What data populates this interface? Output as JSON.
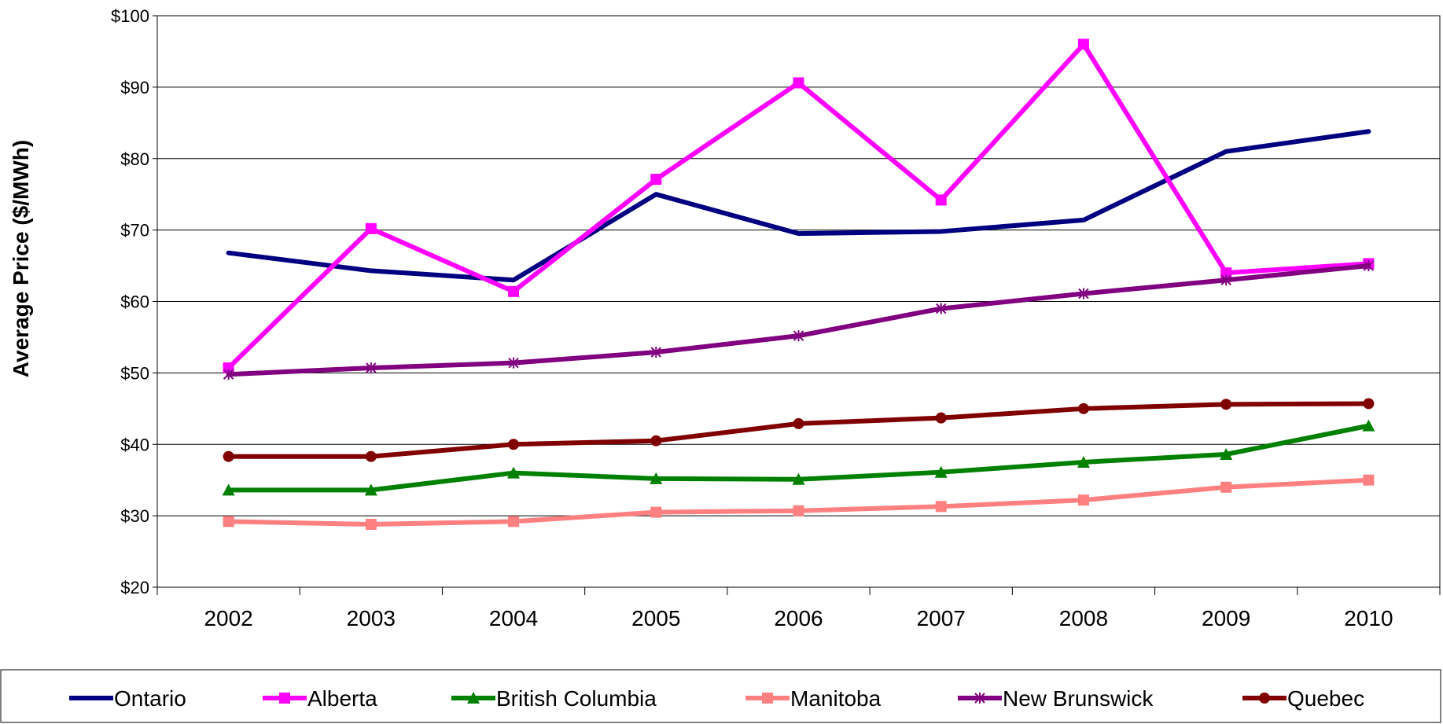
{
  "chart_data": {
    "type": "line",
    "title": "",
    "xlabel": "",
    "ylabel": "Average Price ($/MWh)",
    "x": [
      "2002",
      "2003",
      "2004",
      "2005",
      "2006",
      "2007",
      "2008",
      "2009",
      "2010"
    ],
    "ylim": [
      20,
      100
    ],
    "yticks": [
      20,
      30,
      40,
      50,
      60,
      70,
      80,
      90,
      100
    ],
    "ytick_labels": [
      "$20",
      "$30",
      "$40",
      "$50",
      "$60",
      "$70",
      "$80",
      "$90",
      "$100"
    ],
    "grid": true,
    "legend_position": "bottom",
    "series": [
      {
        "name": "Ontario",
        "color": "#000080",
        "marker": "none",
        "values": [
          66.8,
          64.3,
          63.0,
          75.0,
          69.5,
          69.8,
          71.4,
          81.0,
          83.8
        ]
      },
      {
        "name": "Alberta",
        "color": "#FF00FF",
        "marker": "square",
        "values": [
          50.7,
          70.2,
          61.4,
          77.1,
          90.6,
          74.2,
          96.0,
          64.0,
          65.3
        ]
      },
      {
        "name": "British Columbia",
        "color": "#008000",
        "marker": "triangle",
        "values": [
          33.6,
          33.6,
          36.0,
          35.2,
          35.1,
          36.1,
          37.5,
          38.6,
          42.6
        ]
      },
      {
        "name": "Manitoba",
        "color": "#FF8080",
        "marker": "square",
        "values": [
          29.2,
          28.8,
          29.2,
          30.5,
          30.7,
          31.3,
          32.2,
          34.0,
          35.0
        ]
      },
      {
        "name": "New Brunswick",
        "color": "#800080",
        "marker": "star",
        "values": [
          49.8,
          50.7,
          51.4,
          52.9,
          55.2,
          59.0,
          61.1,
          63.0,
          65.0
        ]
      },
      {
        "name": "Quebec",
        "color": "#800000",
        "marker": "circle",
        "values": [
          38.3,
          38.3,
          40.0,
          40.5,
          42.9,
          43.7,
          45.0,
          45.6,
          45.7
        ]
      }
    ]
  }
}
